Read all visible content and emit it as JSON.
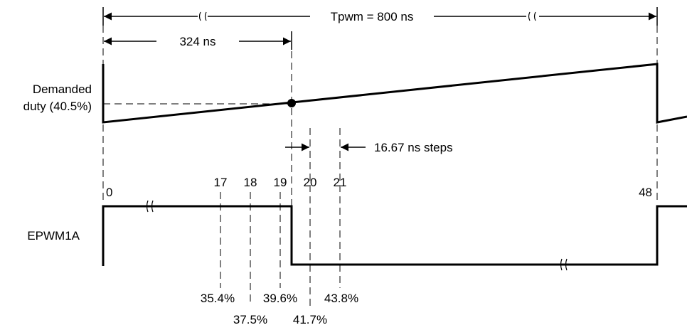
{
  "period_label": "Tpwm = 800 ns",
  "delay_label": "324 ns",
  "duty_label": [
    "Demanded",
    "duty (40.5%)"
  ],
  "step_label": "16.67 ns steps",
  "signal_label": "EPWM1A",
  "counts": {
    "start": "0",
    "c17": "17",
    "c18": "18",
    "c19": "19",
    "c20": "20",
    "c21": "21",
    "end": "48"
  },
  "percents": {
    "p354": "35.4%",
    "p375": "37.5%",
    "p396": "39.6%",
    "p417": "41.7%",
    "p438": "43.8%"
  }
}
